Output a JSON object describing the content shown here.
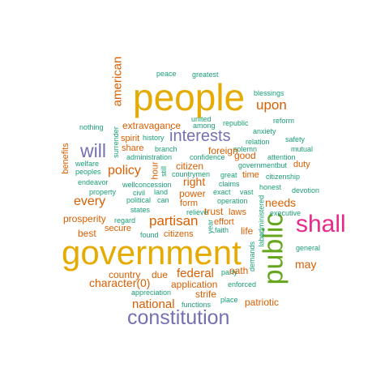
{
  "colors": {
    "teal": "#1b9e77",
    "orange": "#d95f02",
    "purple": "#7570b3",
    "gold": "#e6ab02",
    "green": "#66a61e",
    "magenta": "#e7298a"
  },
  "words": {
    "people": "people",
    "government": "government",
    "shall": "shall",
    "public": "public",
    "constitution": "constitution",
    "interests": "interests",
    "will": "will",
    "upon": "upon",
    "american": "american",
    "policy": "policy",
    "every": "every",
    "partisan": "partisan",
    "federal": "federal",
    "national": "national",
    "character": "character(0)",
    "may": "may",
    "needs": "needs",
    "citizen": "citizen",
    "right": "right",
    "peace": "peace",
    "greatest": "greatest",
    "blessings": "blessings",
    "reform": "reform",
    "united": "united",
    "among": "among",
    "republic": "republic",
    "nothing": "nothing",
    "extravagance": "extravagance",
    "anxiety": "anxiety",
    "relation": "relation",
    "safety": "safety",
    "spirit": "spirit",
    "history": "history",
    "attention": "attention",
    "mutual": "mutual",
    "solemn": "solemn",
    "share": "share",
    "branch": "branch",
    "foreign": "foreign",
    "welfare": "welfare",
    "surrender": "surrender",
    "administration": "administration",
    "confidence": "confidence",
    "governmentbut": "governmentbut",
    "duty": "duty",
    "benefits": "benefits",
    "peoples": "peoples",
    "hour": "hour",
    "still": "still",
    "countrymen": "countrymen",
    "great": "great",
    "time": "time",
    "citizenship": "citizenship",
    "endeavor": "endeavor",
    "wellconcession": "wellconcession",
    "claims": "claims",
    "honest": "honest",
    "property": "property",
    "civil": "civil",
    "land": "land",
    "exact": "exact",
    "vast": "vast",
    "devotion": "devotion",
    "power": "power",
    "political": "political",
    "can": "can",
    "form": "form",
    "operation": "operation",
    "states": "states",
    "relieve": "relieve",
    "trust": "trust",
    "laws": "laws",
    "administered": "administered",
    "executive": "executive",
    "prosperity": "prosperity",
    "regard": "regard",
    "effort": "effort",
    "secure": "secure",
    "year": "year",
    "faith": "faith",
    "life": "life",
    "best": "best",
    "found": "found",
    "citizens": "citizens",
    "labor": "labor",
    "general": "general",
    "demands": "demands",
    "country": "country",
    "due": "due",
    "party": "party",
    "application": "application",
    "enforced": "enforced",
    "appreciation": "appreciation",
    "strife": "strife",
    "functions": "functions",
    "place": "place",
    "patriotic": "patriotic",
    "oath": "oath",
    "good": "good"
  }
}
